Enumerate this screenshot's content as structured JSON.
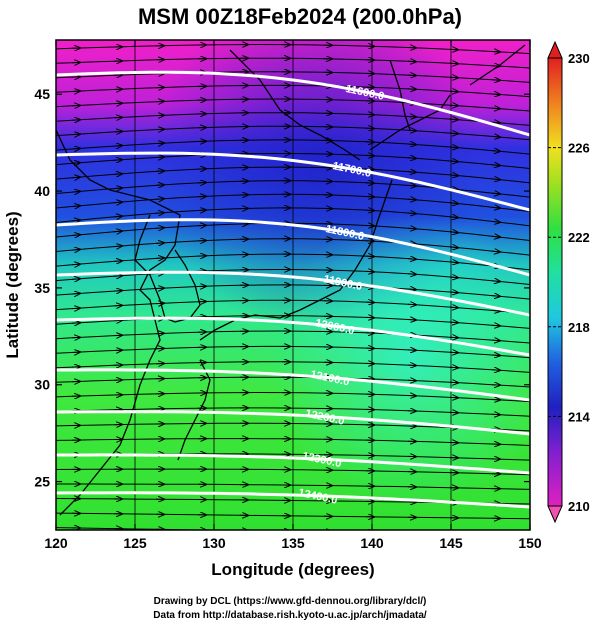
{
  "title": "MSM 00Z18Feb2024 (200.0hPa)",
  "xlabel": "Longitude (degrees)",
  "ylabel": "Latitude  (degrees)",
  "x_ticks": [
    "120",
    "125",
    "130",
    "135",
    "140",
    "145",
    "150"
  ],
  "y_ticks": [
    "25",
    "30",
    "35",
    "40",
    "45"
  ],
  "colorbar": {
    "ticks": [
      "230",
      "226",
      "222",
      "218",
      "214",
      "210"
    ],
    "range": [
      210,
      230
    ]
  },
  "contours": [
    {
      "label": "11600.0"
    },
    {
      "label": "11700.0"
    },
    {
      "label": "11800.0"
    },
    {
      "label": "11900.0"
    },
    {
      "label": "12000.0"
    },
    {
      "label": "12100.0"
    },
    {
      "label": "12200.0"
    },
    {
      "label": "12300.0"
    },
    {
      "label": "12400.0"
    }
  ],
  "credits": {
    "line1": "Drawing by DCL (https://www.gfd-dennou.org/library/dcl/)",
    "line2": "Data from http://database.rish.kyoto-u.ac.jp/arch/jmadata/"
  },
  "colors": {
    "cold": "#e020d0",
    "cool": "#2030d0",
    "mid": "#20e8a0",
    "warm": "#40e040"
  }
}
